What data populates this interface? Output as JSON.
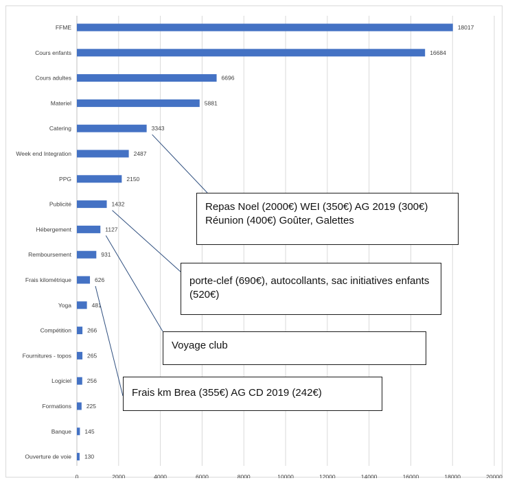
{
  "chart_data": {
    "type": "bar",
    "orientation": "horizontal",
    "categories": [
      "FFME",
      "Cours enfants",
      "Cours adultes",
      "Materiel",
      "Catering",
      "Week end Integration",
      "PPG",
      "Publicité",
      "Hébergement",
      "Remboursement",
      "Frais kilométrique",
      "Yoga",
      "Compétition",
      "Fournitures - topos",
      "Logiciel",
      "Formations",
      "Banque",
      "Ouverture de voie"
    ],
    "values": [
      18017,
      16684,
      6696,
      5881,
      3343,
      2487,
      2150,
      1432,
      1127,
      931,
      626,
      481,
      266,
      265,
      256,
      225,
      145,
      130
    ],
    "xlim": [
      0,
      20000
    ],
    "xticks": [
      0,
      2000,
      4000,
      6000,
      8000,
      10000,
      12000,
      14000,
      16000,
      18000,
      20000
    ],
    "grid": "vertical",
    "bar_color": "#4472c4",
    "annotations": [
      {
        "text": "Repas Noel (2000€) WEI (350€) AG 2019 (300€) Réunion (400€) Goûter, Galettes",
        "target": "Catering"
      },
      {
        "text": "porte-clef (690€), autocollants, sac initiatives enfants (520€)",
        "target": "Publicité"
      },
      {
        "text": "Voyage club",
        "target": "Hébergement"
      },
      {
        "text": "Frais km Brea (355€) AG CD 2019 (242€)",
        "target": "Frais kilométrique"
      }
    ]
  }
}
